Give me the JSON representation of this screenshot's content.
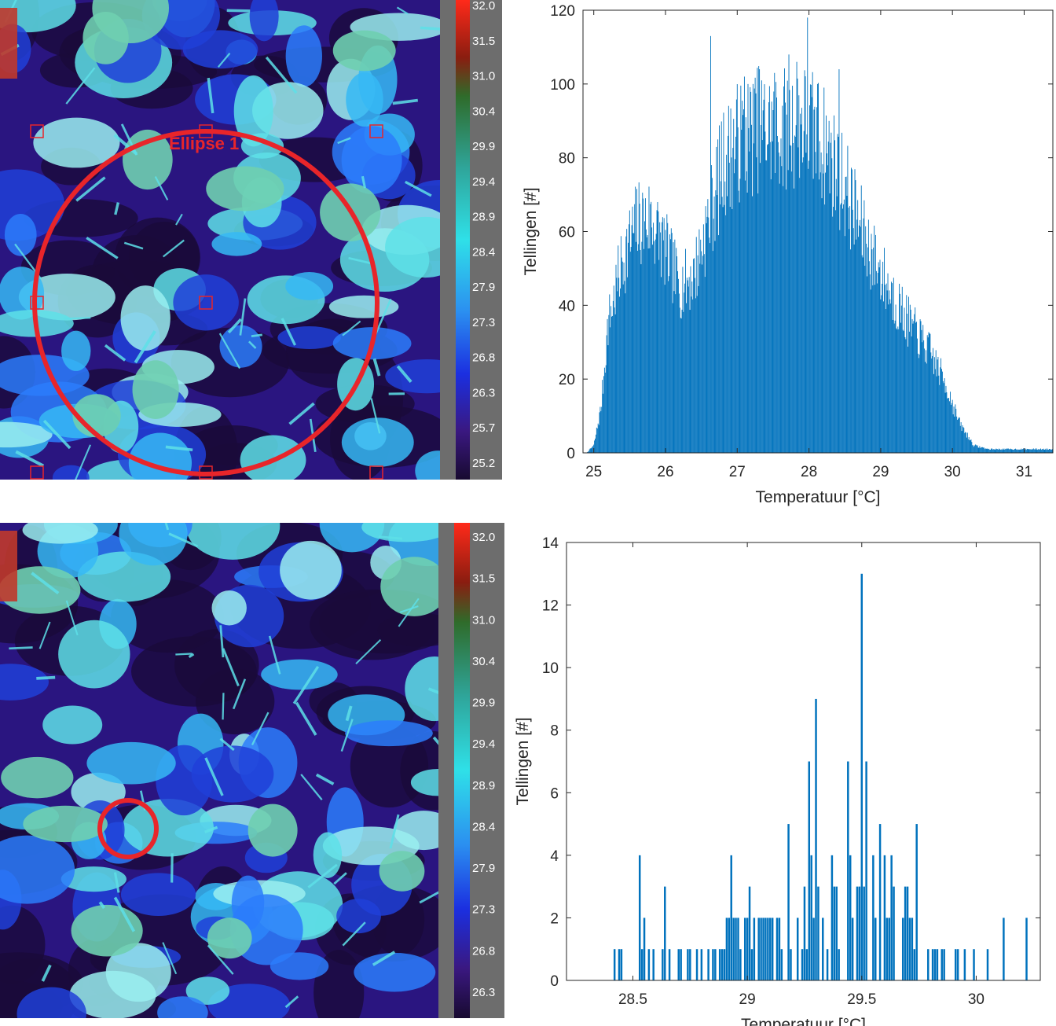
{
  "thermal_images": [
    {
      "roi_label": "Ellipse 1",
      "palette": [
        "#1a0a3a",
        "#2a1580",
        "#2040d8",
        "#2b7dfb",
        "#36b9f5",
        "#5ee0e8",
        "#9aeef0",
        "#6fcfb0"
      ],
      "roi_color": "#e8252a"
    },
    {
      "roi_label": "",
      "palette": [
        "#1a0a3a",
        "#2a1580",
        "#2040d8",
        "#2b7dfb",
        "#36b9f5",
        "#5ee0e8",
        "#9aeef0",
        "#6fcfb0"
      ],
      "roi_color": "#e8252a"
    }
  ],
  "colorbars": [
    {
      "ticks": [
        "32.0",
        "31.5",
        "31.0",
        "30.4",
        "29.9",
        "29.4",
        "28.9",
        "28.4",
        "27.9",
        "27.3",
        "26.8",
        "26.3",
        "25.7",
        "25.2"
      ]
    },
    {
      "ticks": [
        "32.0",
        "31.5",
        "31.0",
        "30.4",
        "29.9",
        "29.4",
        "28.9",
        "28.4",
        "27.9",
        "27.3",
        "26.8",
        "26.3"
      ]
    }
  ],
  "chart_data": [
    {
      "type": "bar",
      "title": "",
      "xlabel": "Temperatuur [°C]",
      "ylabel": "Tellingen [#]",
      "xlim": [
        24.85,
        31.4
      ],
      "ylim": [
        0,
        120
      ],
      "xticks": [
        25,
        26,
        27,
        28,
        29,
        30,
        31
      ],
      "yticks": [
        0,
        20,
        40,
        60,
        80,
        100,
        120
      ],
      "grid": false,
      "color": "#0072bd",
      "bin_width": 0.01,
      "envelope": [
        [
          24.9,
          0
        ],
        [
          25.0,
          2
        ],
        [
          25.1,
          12
        ],
        [
          25.2,
          35
        ],
        [
          25.4,
          52
        ],
        [
          25.6,
          62
        ],
        [
          25.8,
          63
        ],
        [
          26.0,
          55
        ],
        [
          26.2,
          45
        ],
        [
          26.4,
          48
        ],
        [
          26.6,
          63
        ],
        [
          26.8,
          78
        ],
        [
          27.0,
          84
        ],
        [
          27.3,
          88
        ],
        [
          27.6,
          87
        ],
        [
          27.9,
          90
        ],
        [
          28.2,
          84
        ],
        [
          28.5,
          72
        ],
        [
          28.8,
          57
        ],
        [
          29.1,
          45
        ],
        [
          29.4,
          35
        ],
        [
          29.7,
          27
        ],
        [
          29.9,
          19
        ],
        [
          30.1,
          8
        ],
        [
          30.3,
          2
        ],
        [
          30.5,
          1
        ],
        [
          31.4,
          1
        ]
      ],
      "peaks": [
        [
          26.63,
          113
        ],
        [
          27.1,
          102
        ],
        [
          27.31,
          104
        ],
        [
          27.52,
          103
        ],
        [
          27.72,
          108
        ],
        [
          27.98,
          118
        ],
        [
          28.12,
          100
        ],
        [
          28.42,
          104
        ],
        [
          27.22,
          100
        ],
        [
          27.83,
          106
        ]
      ]
    },
    {
      "type": "bar",
      "title": "",
      "xlabel": "Temperatuur [°C]",
      "ylabel": "Tellingen [#]",
      "xlim": [
        28.21,
        30.28
      ],
      "ylim": [
        0,
        14
      ],
      "xticks": [
        28.5,
        29,
        29.5,
        30
      ],
      "yticks": [
        0,
        2,
        4,
        6,
        8,
        10,
        12,
        14
      ],
      "grid": false,
      "color": "#0072bd",
      "bin_width": 0.01,
      "envelope": [
        [
          28.21,
          0.2
        ],
        [
          28.4,
          0.5
        ],
        [
          28.6,
          0.6
        ],
        [
          28.8,
          1.0
        ],
        [
          28.95,
          1.6
        ],
        [
          29.1,
          1.9
        ],
        [
          29.3,
          2.4
        ],
        [
          29.45,
          2.7
        ],
        [
          29.55,
          2.6
        ],
        [
          29.7,
          2.0
        ],
        [
          29.85,
          1.3
        ],
        [
          29.95,
          0.5
        ],
        [
          30.28,
          0.2
        ]
      ],
      "peaks": [
        [
          29.5,
          13
        ],
        [
          29.3,
          9
        ],
        [
          29.27,
          7
        ],
        [
          29.44,
          7
        ],
        [
          29.52,
          7
        ],
        [
          29.18,
          5
        ],
        [
          29.58,
          5
        ],
        [
          29.74,
          5
        ],
        [
          28.53,
          4
        ],
        [
          28.93,
          4
        ],
        [
          28.55,
          2
        ],
        [
          28.64,
          3
        ],
        [
          30.12,
          2
        ],
        [
          30.22,
          2
        ]
      ]
    }
  ]
}
